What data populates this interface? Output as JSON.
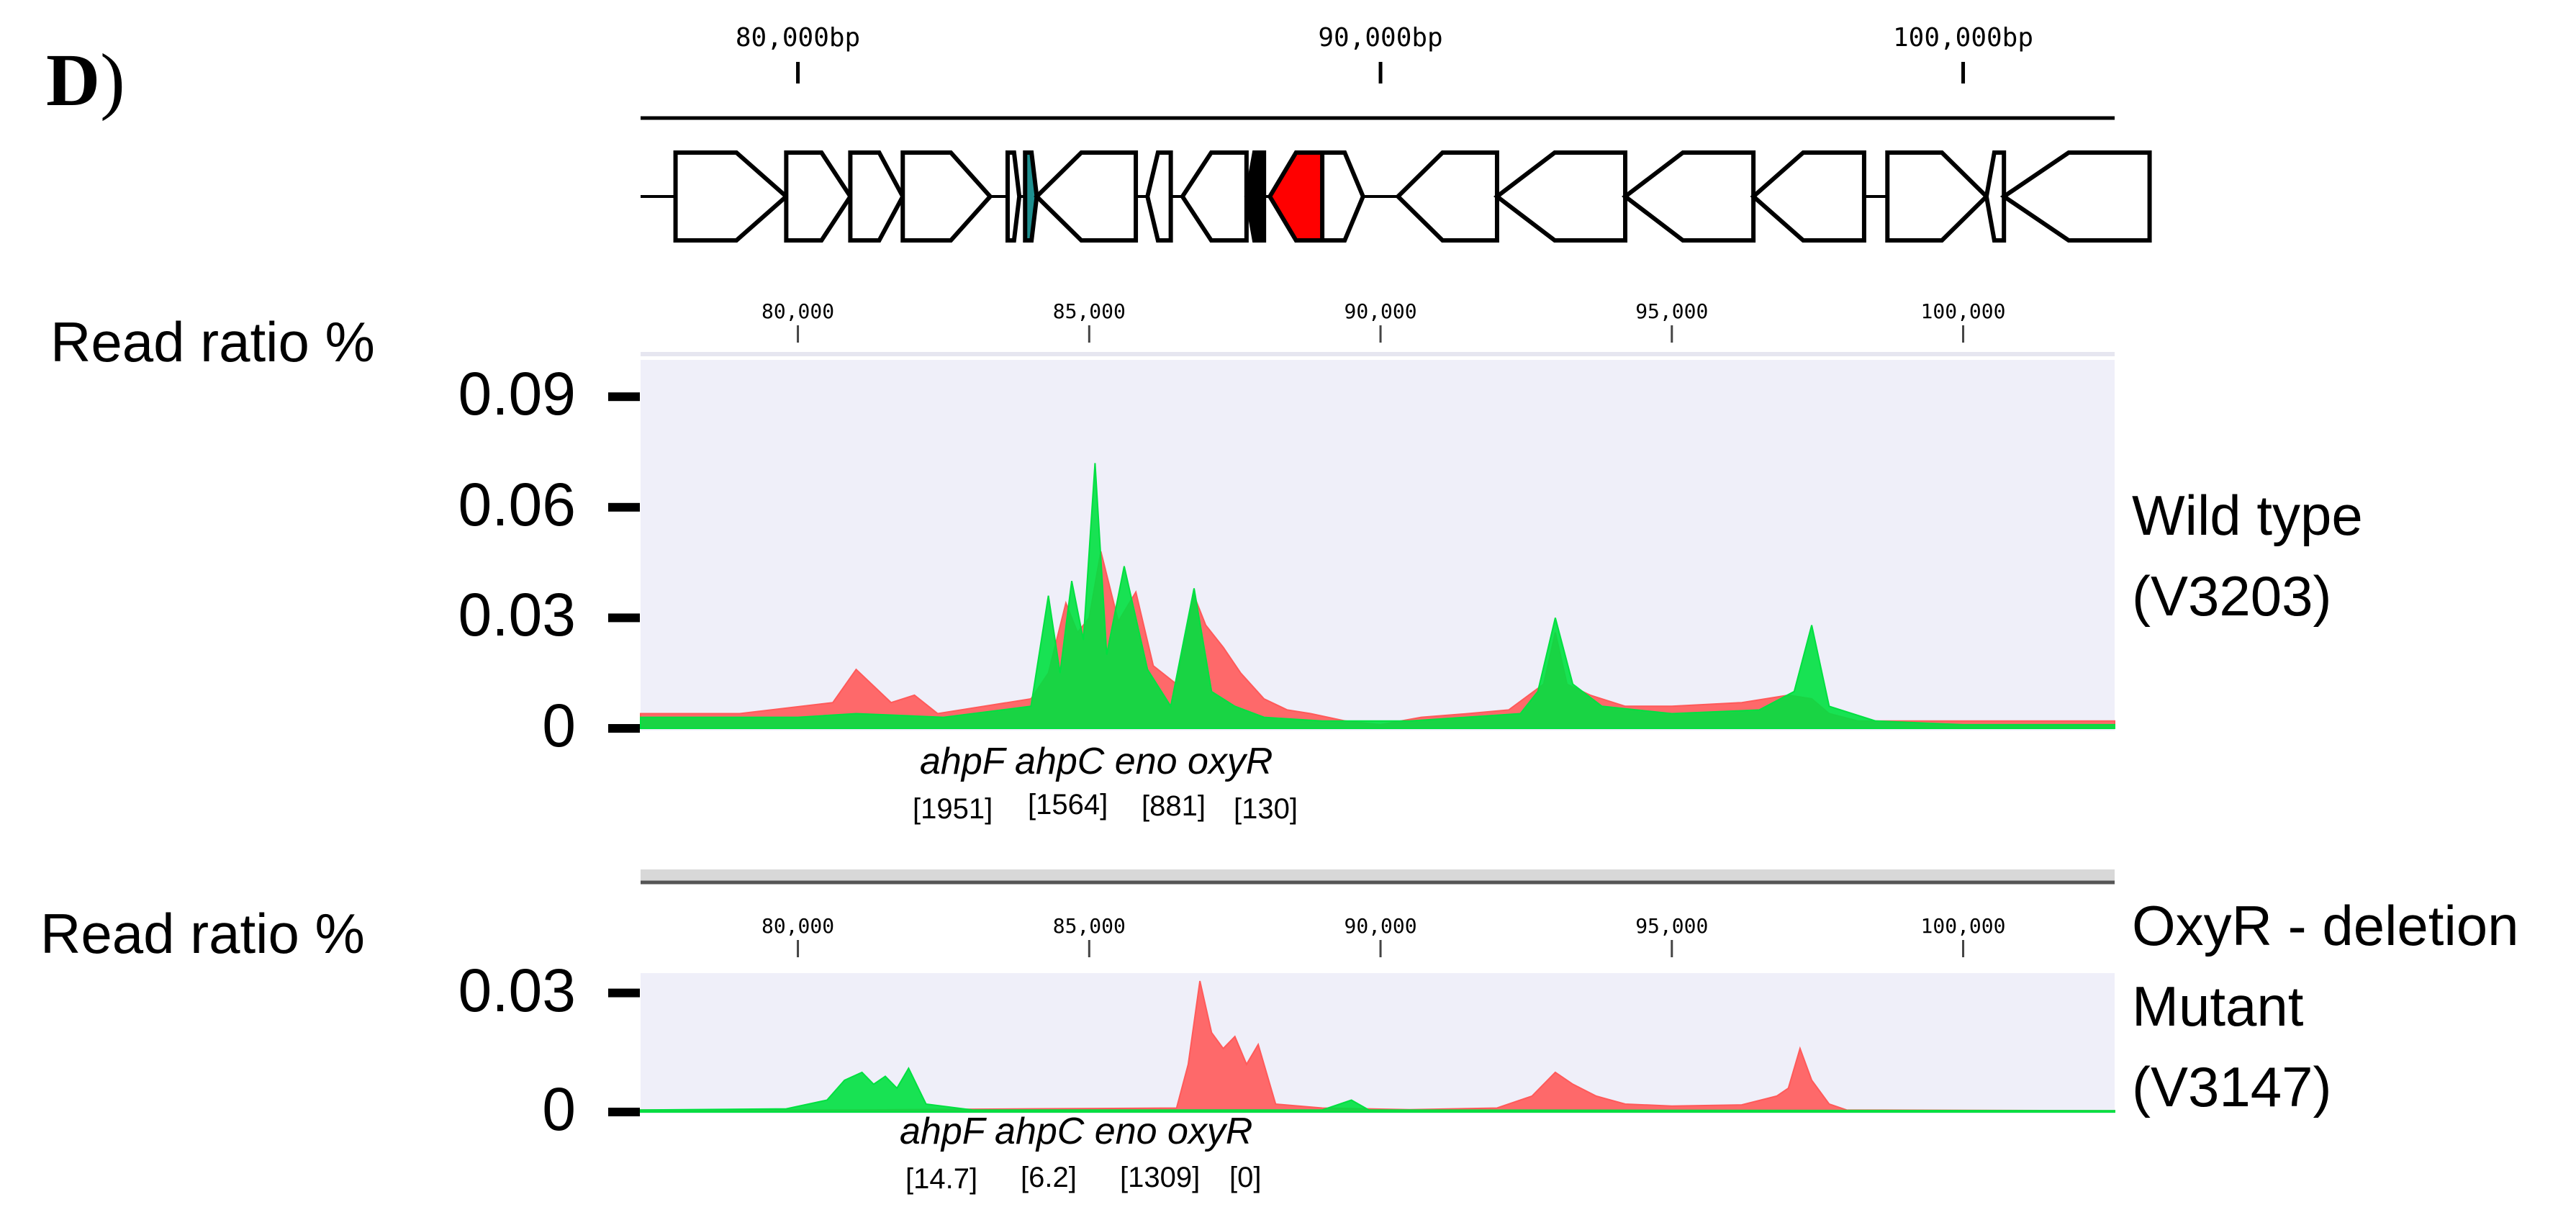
{
  "panel": {
    "letter": "D",
    "paren": ")"
  },
  "genome_axis": {
    "ticks": [
      {
        "label": "80,000bp",
        "pos": 80000
      },
      {
        "label": "90,000bp",
        "pos": 90000
      },
      {
        "label": "100,000bp",
        "pos": 100000
      }
    ]
  },
  "gene_map": {
    "genes": [
      {
        "start": 77900,
        "end": 79800,
        "strand": "+",
        "color": "#ffffff"
      },
      {
        "start": 79800,
        "end": 80900,
        "strand": "+",
        "color": "#ffffff"
      },
      {
        "start": 80900,
        "end": 81800,
        "strand": "+",
        "color": "#ffffff"
      },
      {
        "start": 81800,
        "end": 83300,
        "strand": "+",
        "color": "#ffffff"
      },
      {
        "start": 83600,
        "end": 83800,
        "strand": "+",
        "color": "#ffffff"
      },
      {
        "start": 83900,
        "end": 84100,
        "strand": "+",
        "color": "#1e8f8f"
      },
      {
        "start": 84100,
        "end": 85800,
        "strand": "-",
        "color": "#ffffff"
      },
      {
        "start": 86000,
        "end": 86400,
        "strand": "-",
        "color": "#ffffff"
      },
      {
        "start": 86600,
        "end": 87700,
        "strand": "-",
        "color": "#ffffff"
      },
      {
        "start": 87700,
        "end": 88000,
        "strand": "-",
        "color": "#000000"
      },
      {
        "start": 88100,
        "end": 89100,
        "strand": "-",
        "color": "#ff0000"
      },
      {
        "start": 89000,
        "end": 89700,
        "strand": "+",
        "color": "#ffffff"
      },
      {
        "start": 90300,
        "end": 92000,
        "strand": "-",
        "color": "#ffffff"
      },
      {
        "start": 92000,
        "end": 94200,
        "strand": "-",
        "color": "#ffffff"
      },
      {
        "start": 94200,
        "end": 96400,
        "strand": "-",
        "color": "#ffffff"
      },
      {
        "start": 96400,
        "end": 98300,
        "strand": "-",
        "color": "#ffffff"
      },
      {
        "start": 98700,
        "end": 100400,
        "strand": "+",
        "color": "#ffffff"
      },
      {
        "start": 100400,
        "end": 100700,
        "strand": "-",
        "color": "#ffffff"
      },
      {
        "start": 100700,
        "end": 103200,
        "strand": "-",
        "color": "#ffffff"
      }
    ]
  },
  "chart_data": [
    {
      "type": "area",
      "title": "",
      "sample_label": [
        "Wild type",
        "(V3203)"
      ],
      "ylabel": "Read ratio %",
      "ylim": [
        0,
        0.1
      ],
      "yticks": [
        "0.09",
        "0.06",
        "0.03",
        "0"
      ],
      "ytick_values": [
        0.09,
        0.06,
        0.03,
        0
      ],
      "xlim": [
        77300,
        102600
      ],
      "xticks": [
        {
          "label": "80,000",
          "pos": 80000
        },
        {
          "label": "85,000",
          "pos": 85000
        },
        {
          "label": "90,000",
          "pos": 90000
        },
        {
          "label": "95,000",
          "pos": 95000
        },
        {
          "label": "100,000",
          "pos": 100000
        }
      ],
      "series": [
        {
          "color": "#ff5a5a",
          "x": [
            77300,
            79000,
            80600,
            81000,
            81600,
            82000,
            82400,
            84000,
            84300,
            84600,
            84800,
            85000,
            85200,
            85500,
            85800,
            86100,
            86500,
            86800,
            87000,
            87300,
            87600,
            88000,
            88400,
            88800,
            89400,
            90000,
            90700,
            91500,
            92200,
            92800,
            93000,
            93200,
            93600,
            94200,
            95000,
            96200,
            97000,
            97400,
            97700,
            98200,
            99000,
            100000,
            101000,
            102600
          ],
          "y": [
            0.004,
            0.004,
            0.007,
            0.016,
            0.007,
            0.009,
            0.004,
            0.008,
            0.015,
            0.034,
            0.026,
            0.03,
            0.048,
            0.029,
            0.037,
            0.017,
            0.012,
            0.036,
            0.028,
            0.022,
            0.015,
            0.008,
            0.005,
            0.004,
            0.002,
            0.001,
            0.003,
            0.004,
            0.005,
            0.012,
            0.026,
            0.012,
            0.009,
            0.006,
            0.006,
            0.007,
            0.009,
            0.008,
            0.004,
            0.002,
            0.002,
            0.002,
            0.002,
            0.002
          ]
        },
        {
          "color": "#00e040",
          "x": [
            77300,
            80000,
            81000,
            82500,
            84000,
            84300,
            84500,
            84700,
            84900,
            85100,
            85300,
            85600,
            86000,
            86400,
            86800,
            87100,
            87500,
            88000,
            89000,
            90500,
            92400,
            92700,
            93000,
            93300,
            93800,
            95000,
            96500,
            97100,
            97400,
            97700,
            98500,
            100000,
            102600
          ],
          "y": [
            0.003,
            0.003,
            0.004,
            0.003,
            0.006,
            0.036,
            0.015,
            0.04,
            0.024,
            0.072,
            0.02,
            0.044,
            0.016,
            0.006,
            0.038,
            0.01,
            0.006,
            0.003,
            0.002,
            0.002,
            0.004,
            0.01,
            0.03,
            0.012,
            0.006,
            0.004,
            0.005,
            0.01,
            0.028,
            0.006,
            0.002,
            0.001,
            0.001
          ]
        }
      ]
    },
    {
      "type": "area",
      "title": "",
      "sample_label": [
        "OxyR - deletion",
        "Mutant",
        "(V3147)"
      ],
      "ylabel": "Read ratio %",
      "ylim": [
        0,
        0.035
      ],
      "yticks": [
        "0.03",
        "0"
      ],
      "ytick_values": [
        0.03,
        0
      ],
      "xlim": [
        77300,
        102600
      ],
      "xticks": [
        {
          "label": "80,000",
          "pos": 80000
        },
        {
          "label": "85,000",
          "pos": 85000
        },
        {
          "label": "90,000",
          "pos": 90000
        },
        {
          "label": "95,000",
          "pos": 95000
        },
        {
          "label": "100,000",
          "pos": 100000
        }
      ],
      "series": [
        {
          "color": "#ff5a5a",
          "x": [
            77300,
            81000,
            84000,
            86500,
            86700,
            86900,
            87100,
            87300,
            87500,
            87700,
            87900,
            88200,
            89000,
            90500,
            92000,
            92600,
            93000,
            93300,
            93700,
            94200,
            95000,
            96200,
            96800,
            97000,
            97200,
            97400,
            97700,
            98000,
            102600
          ],
          "y": [
            0.0005,
            0.0005,
            0.0008,
            0.001,
            0.012,
            0.033,
            0.02,
            0.016,
            0.019,
            0.012,
            0.017,
            0.002,
            0.001,
            0.0006,
            0.001,
            0.004,
            0.01,
            0.007,
            0.004,
            0.002,
            0.0015,
            0.0018,
            0.004,
            0.006,
            0.016,
            0.008,
            0.002,
            0.0005,
            0.0003
          ]
        },
        {
          "color": "#00e040",
          "x": [
            77300,
            79800,
            80500,
            80800,
            81100,
            81300,
            81500,
            81700,
            81900,
            82200,
            83000,
            89000,
            89500,
            89800,
            102600
          ],
          "y": [
            0.0005,
            0.0008,
            0.003,
            0.008,
            0.01,
            0.007,
            0.009,
            0.006,
            0.011,
            0.002,
            0.0005,
            0.0005,
            0.003,
            0.0005,
            0.0003
          ]
        }
      ]
    }
  ],
  "annotations": {
    "wt_genes": "ahpF ahpC eno oxyR",
    "wt_counts": [
      "[1951]",
      "[1564]",
      "[881]",
      "[130]"
    ],
    "mut_genes": "ahpF ahpC eno oxyR",
    "mut_counts": [
      "[14.7]",
      "[6.2]",
      "[1309]",
      "[0]"
    ]
  }
}
